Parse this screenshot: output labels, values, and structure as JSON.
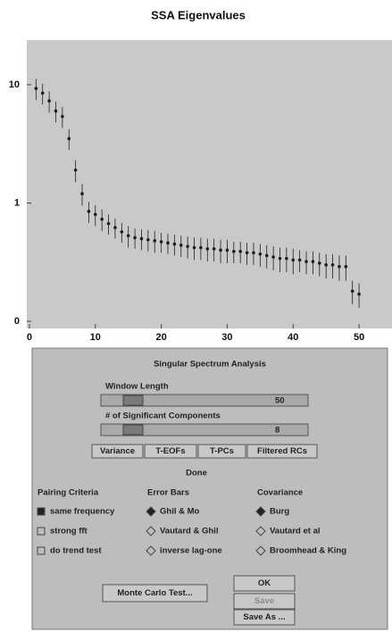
{
  "chart_data": {
    "type": "errorbar",
    "title": "SSA Eigenvalues",
    "x": [
      1,
      2,
      3,
      4,
      5,
      6,
      7,
      8,
      9,
      10,
      11,
      12,
      13,
      14,
      15,
      16,
      17,
      18,
      19,
      20,
      21,
      22,
      23,
      24,
      25,
      26,
      27,
      28,
      29,
      30,
      31,
      32,
      33,
      34,
      35,
      36,
      37,
      38,
      39,
      40,
      41,
      42,
      43,
      44,
      45,
      46,
      47,
      48,
      49,
      50
    ],
    "values": [
      9.3,
      8.5,
      7.3,
      6.0,
      5.4,
      3.5,
      1.9,
      1.2,
      0.85,
      0.8,
      0.73,
      0.67,
      0.62,
      0.57,
      0.53,
      0.51,
      0.5,
      0.49,
      0.48,
      0.47,
      0.46,
      0.45,
      0.44,
      0.43,
      0.42,
      0.42,
      0.41,
      0.41,
      0.4,
      0.4,
      0.39,
      0.39,
      0.38,
      0.38,
      0.37,
      0.36,
      0.35,
      0.34,
      0.34,
      0.33,
      0.33,
      0.32,
      0.32,
      0.31,
      0.3,
      0.3,
      0.29,
      0.29,
      0.18,
      0.17
    ],
    "errors": [
      1.9,
      1.7,
      1.5,
      1.2,
      1.1,
      0.7,
      0.4,
      0.25,
      0.17,
      0.16,
      0.15,
      0.13,
      0.12,
      0.11,
      0.11,
      0.1,
      0.1,
      0.1,
      0.1,
      0.09,
      0.09,
      0.09,
      0.09,
      0.09,
      0.09,
      0.09,
      0.09,
      0.09,
      0.09,
      0.09,
      0.08,
      0.08,
      0.08,
      0.08,
      0.08,
      0.08,
      0.08,
      0.08,
      0.08,
      0.08,
      0.07,
      0.07,
      0.07,
      0.07,
      0.07,
      0.07,
      0.07,
      0.07,
      0.04,
      0.04
    ],
    "xlim": [
      -0.4,
      55
    ],
    "ylim": [
      0.087,
      23.8
    ],
    "log_y": true,
    "xticks": [
      0,
      10,
      20,
      30,
      40,
      50
    ],
    "yticks": [
      {
        "value": 0.1,
        "label": "0"
      },
      1,
      10
    ],
    "color": "#1e1e1e",
    "background": "#c9c9c9"
  },
  "dialog": {
    "title": "Singular Spectrum Analysis",
    "sliders": [
      {
        "label": "Window Length",
        "value": 50
      },
      {
        "label": "# of Significant Components",
        "value": 8
      }
    ],
    "buttons": [
      "Variance",
      "T-EOFs",
      "T-PCs",
      "Filtered RCs"
    ],
    "status": "Done",
    "groups": [
      {
        "title": "Pairing Criteria",
        "kind": "checkbox",
        "items": [
          {
            "label": "same frequency",
            "checked": true
          },
          {
            "label": "strong fft",
            "checked": false
          },
          {
            "label": "do trend test",
            "checked": false
          }
        ]
      },
      {
        "title": "Error Bars",
        "kind": "radio",
        "items": [
          {
            "label": "Ghil & Mo",
            "checked": true
          },
          {
            "label": "Vautard & Ghil",
            "checked": false
          },
          {
            "label": "inverse lag-one",
            "checked": false
          }
        ]
      },
      {
        "title": "Covariance",
        "kind": "radio",
        "items": [
          {
            "label": "Burg",
            "checked": true
          },
          {
            "label": "Vautard et al",
            "checked": false
          },
          {
            "label": "Broomhead & King",
            "checked": false
          }
        ]
      }
    ],
    "monte_carlo": "Monte Carlo Test...",
    "actions": [
      {
        "label": "OK",
        "enabled": true
      },
      {
        "label": "Save",
        "enabled": false
      },
      {
        "label": "Save As ...",
        "enabled": true
      }
    ]
  }
}
